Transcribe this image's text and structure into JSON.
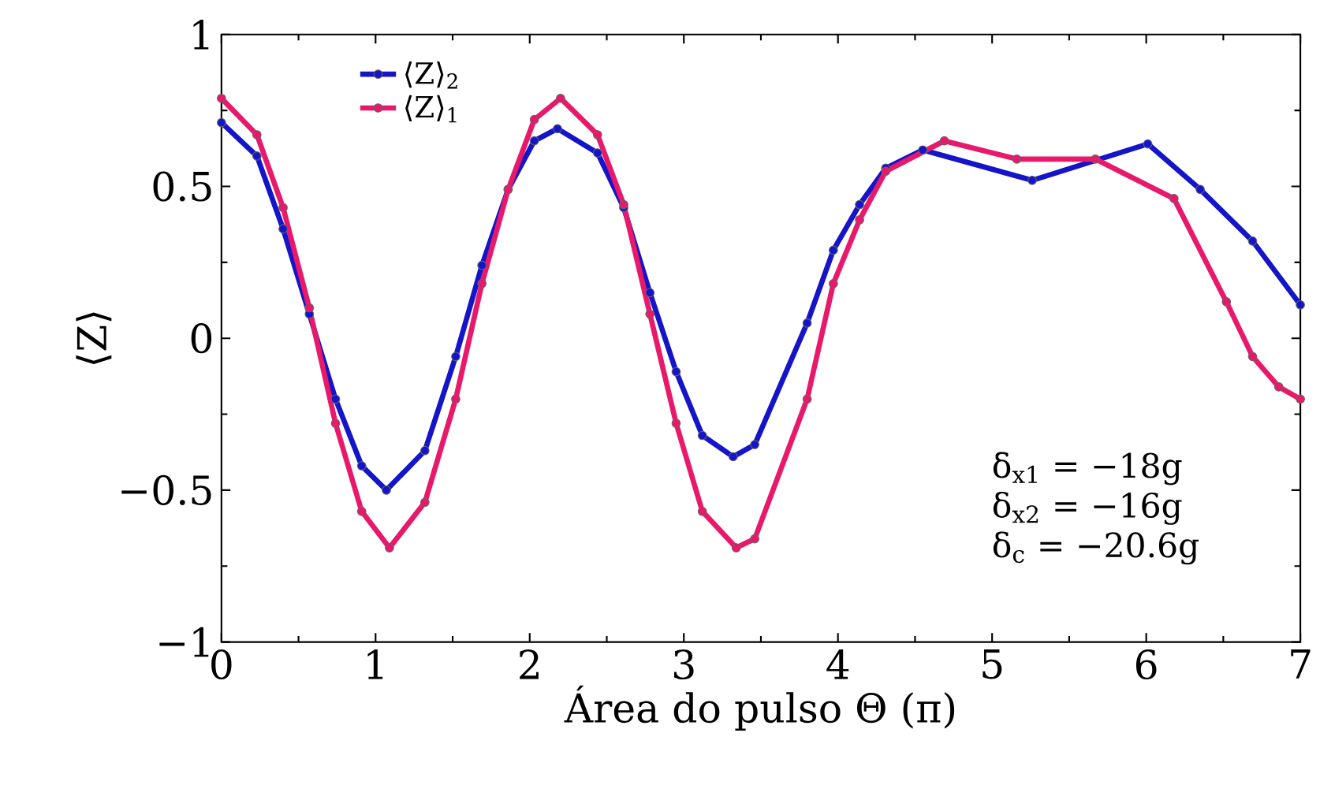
{
  "chart_data": {
    "type": "line",
    "xlabel": "Área do pulso Θ (π)",
    "ylabel": "⟨Z⟩",
    "xlim": [
      0,
      7
    ],
    "ylim": [
      -1,
      1
    ],
    "xticks": [
      0,
      1,
      2,
      3,
      4,
      5,
      6,
      7
    ],
    "yticks": [
      {
        "value": -1,
        "label": "−1"
      },
      {
        "value": -0.5,
        "label": "−0.5"
      },
      0,
      0.5,
      1
    ],
    "legend": "top left",
    "marker": "circle",
    "line_style": "solid",
    "annotations": [
      "δ$_{x1}$ = −18g",
      "δ$_{x2}$ = −16g",
      "δ$_{c}$ = −20.6g"
    ],
    "series": [
      {
        "name": "⟨Z⟩$_{2}$",
        "color": "#1414c8",
        "x": [
          0,
          0.23,
          0.4,
          0.57,
          0.74,
          0.91,
          1.07,
          1.32,
          1.52,
          1.69,
          1.86,
          2.03,
          2.18,
          2.44,
          2.61,
          2.78,
          2.95,
          3.12,
          3.32,
          3.46,
          3.8,
          3.97,
          4.14,
          4.31,
          4.55,
          5.26,
          6.01,
          6.35,
          6.69,
          7.0
        ],
        "values": [
          0.71,
          0.6,
          0.36,
          0.08,
          -0.2,
          -0.42,
          -0.5,
          -0.37,
          -0.06,
          0.24,
          0.49,
          0.65,
          0.69,
          0.61,
          0.43,
          0.15,
          -0.11,
          -0.32,
          -0.39,
          -0.35,
          0.05,
          0.29,
          0.44,
          0.56,
          0.62,
          0.52,
          0.64,
          0.49,
          0.32,
          0.11
        ]
      },
      {
        "name": "⟨Z⟩$_{1}$",
        "color": "#e8186a",
        "x": [
          0,
          0.23,
          0.4,
          0.57,
          0.74,
          0.91,
          1.09,
          1.32,
          1.52,
          1.69,
          1.86,
          2.03,
          2.2,
          2.44,
          2.61,
          2.78,
          2.95,
          3.12,
          3.34,
          3.46,
          3.8,
          3.97,
          4.14,
          4.31,
          4.69,
          5.16,
          5.67,
          6.18,
          6.52,
          6.69,
          6.86,
          7.0
        ],
        "values": [
          0.79,
          0.67,
          0.43,
          0.1,
          -0.28,
          -0.57,
          -0.69,
          -0.54,
          -0.2,
          0.18,
          0.49,
          0.72,
          0.79,
          0.67,
          0.44,
          0.08,
          -0.28,
          -0.57,
          -0.69,
          -0.66,
          -0.2,
          0.18,
          0.39,
          0.55,
          0.65,
          0.59,
          0.59,
          0.46,
          0.12,
          -0.06,
          -0.16,
          -0.2
        ]
      }
    ]
  }
}
